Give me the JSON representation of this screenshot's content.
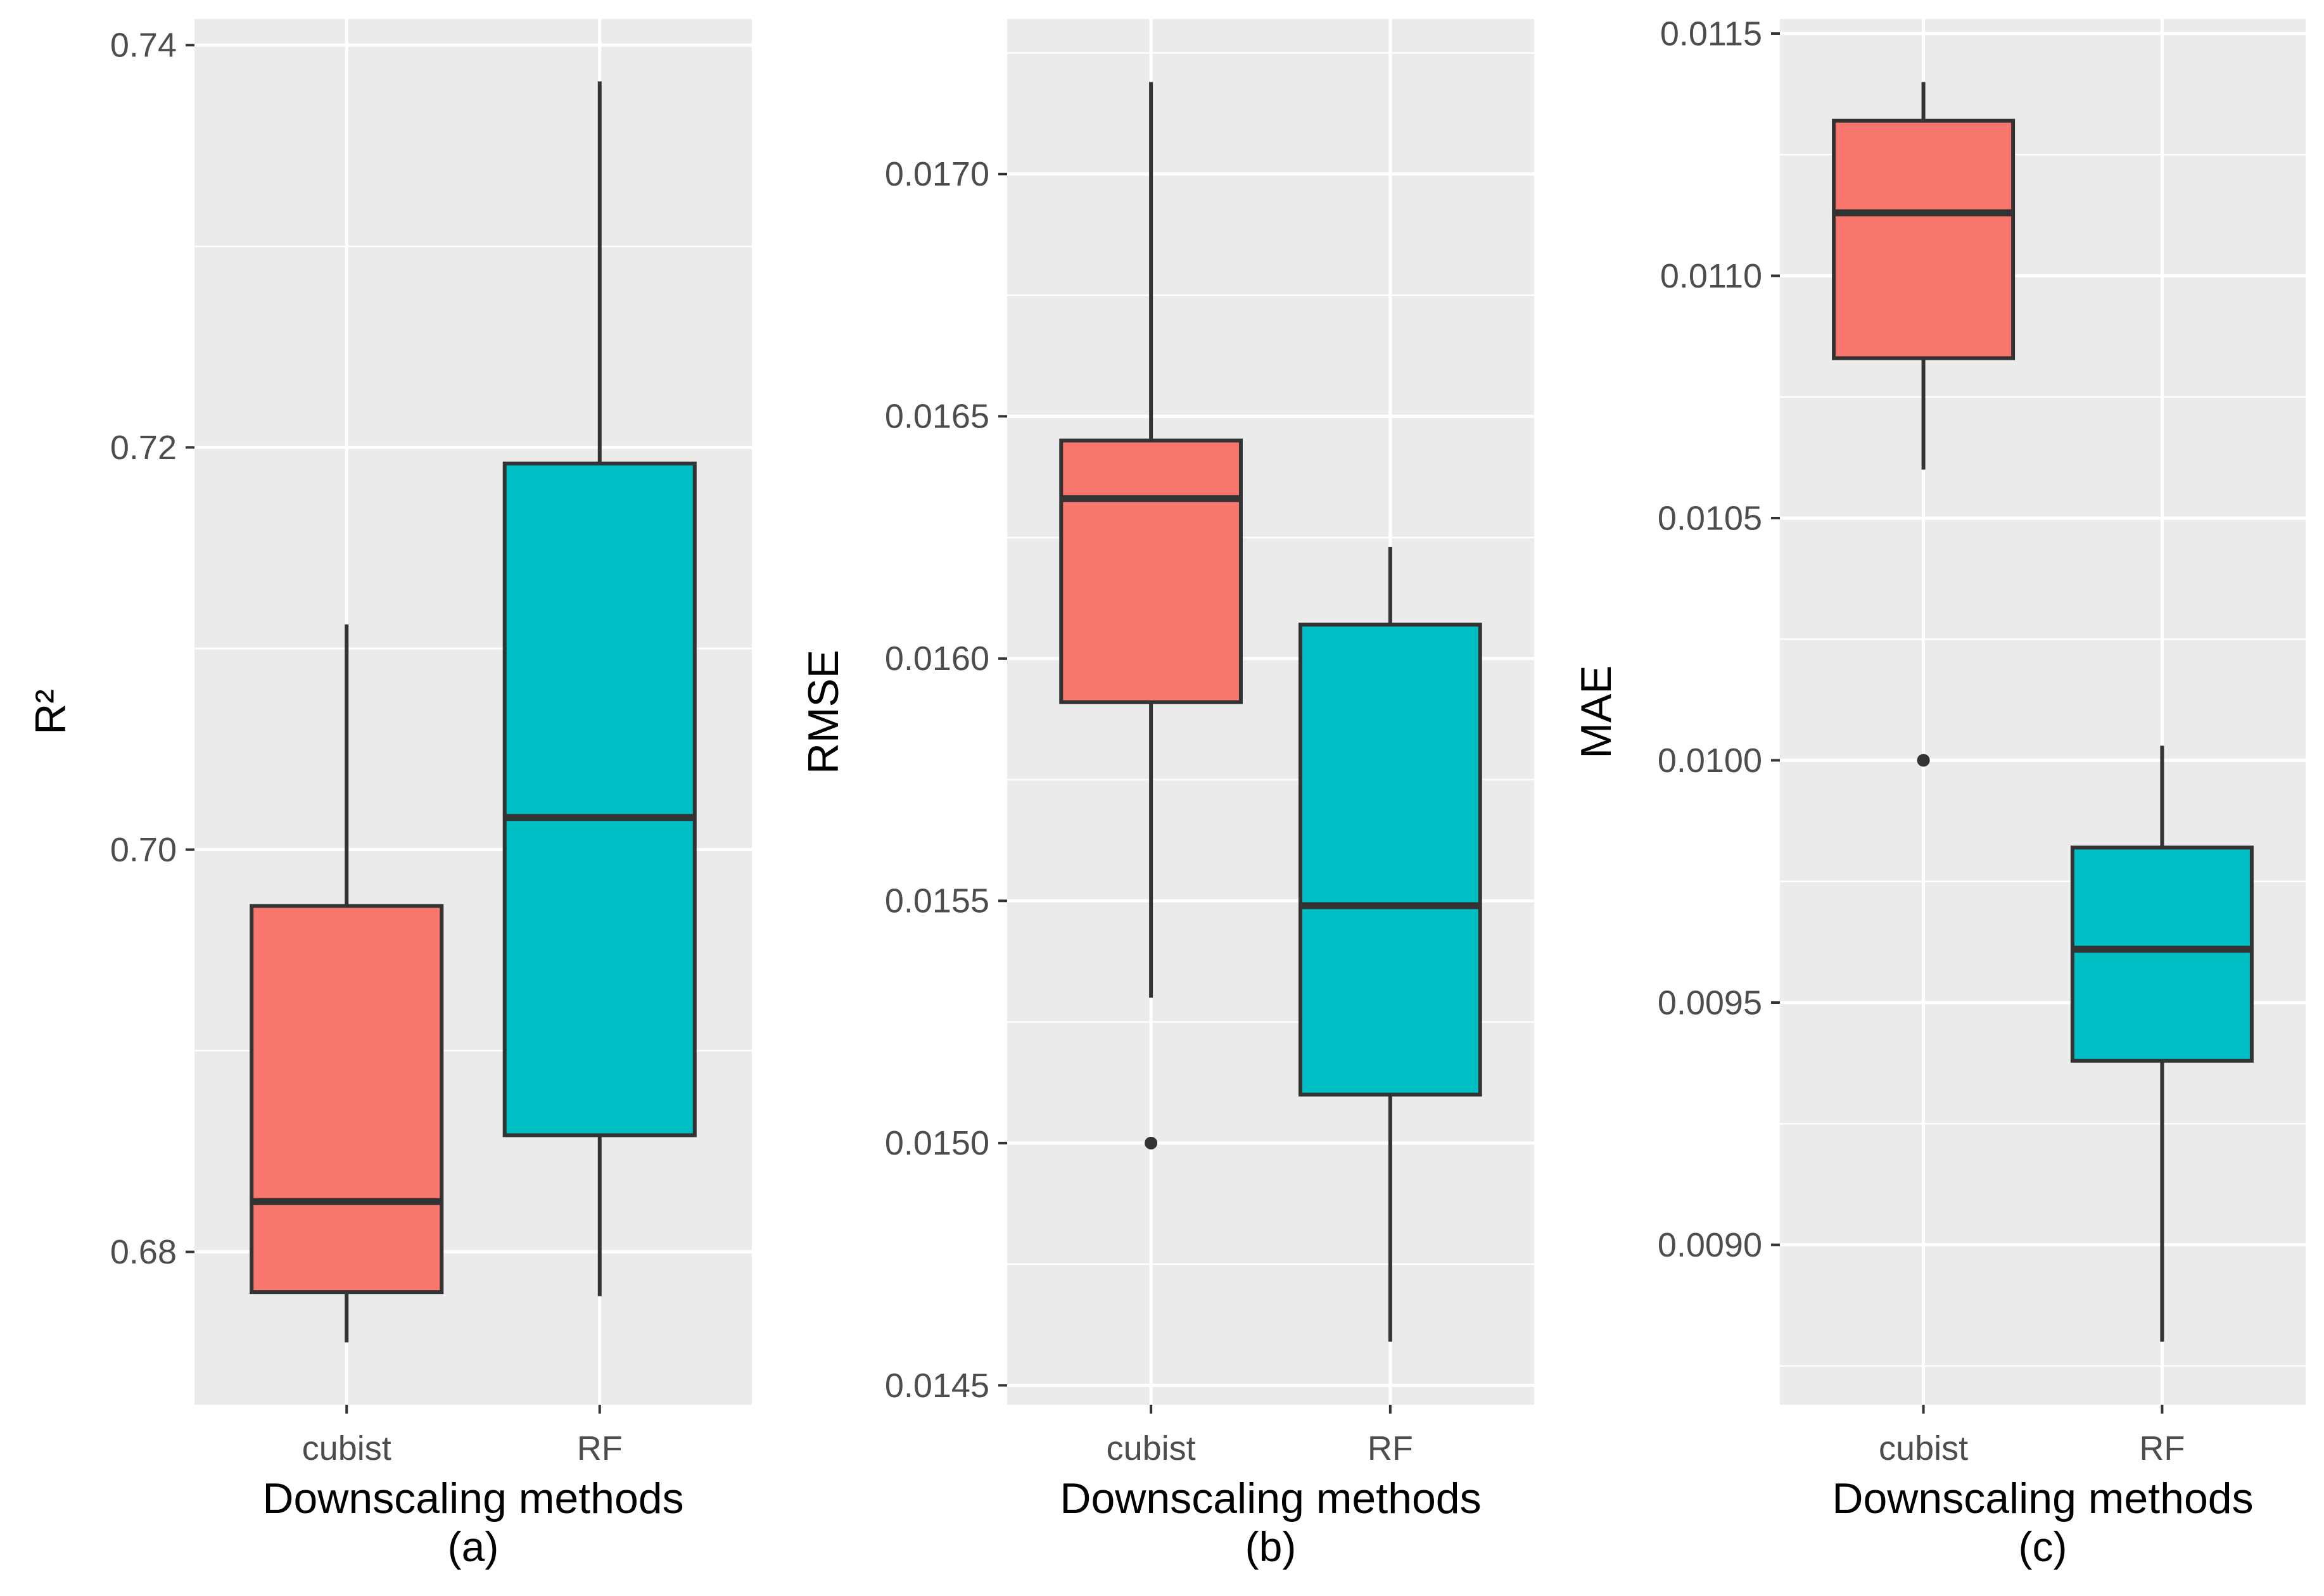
{
  "figure": {
    "background": "#FFFFFF",
    "panel_background": "#EBEBEB",
    "grid_color": "#FFFFFF",
    "box_outline_color": "#333333",
    "median_color": "#333333",
    "outlier_color": "#333333",
    "tick_mark_color": "#333333",
    "tick_text_color": "#4D4D4D",
    "axis_title_color": "#000000",
    "fill_colors": {
      "cubist": "#F8766D",
      "RF": "#00BFC4"
    }
  },
  "chart_data": [
    {
      "type": "boxplot",
      "caption": "(a)",
      "ylabel": "R²",
      "xlabel": "Downscaling methods",
      "categories": [
        "cubist",
        "RF"
      ],
      "ylim": [
        0.6724,
        0.7413
      ],
      "yticks": [
        0.68,
        0.7,
        0.72,
        0.74
      ],
      "ytick_labels": [
        "0.68",
        "0.70",
        "0.72",
        "0.74"
      ],
      "minor_ticks": [
        0.69,
        0.71,
        0.73
      ],
      "grid": true,
      "legend": "none",
      "series": [
        {
          "category": "cubist",
          "fill": "#F8766D",
          "whisker_low": 0.6755,
          "q1": 0.678,
          "median": 0.6825,
          "q3": 0.6972,
          "whisker_high": 0.7112,
          "outliers": []
        },
        {
          "category": "RF",
          "fill": "#00BFC4",
          "whisker_low": 0.6778,
          "q1": 0.6858,
          "median": 0.7016,
          "q3": 0.7192,
          "whisker_high": 0.7382,
          "outliers": []
        }
      ]
    },
    {
      "type": "boxplot",
      "caption": "(b)",
      "ylabel": "RMSE",
      "xlabel": "Downscaling methods",
      "categories": [
        "cubist",
        "RF"
      ],
      "ylim": [
        0.01446,
        0.01732
      ],
      "yticks": [
        0.0145,
        0.015,
        0.0155,
        0.016,
        0.0165,
        0.017
      ],
      "ytick_labels": [
        "0.0145",
        "0.0150",
        "0.0155",
        "0.0160",
        "0.0165",
        "0.0170"
      ],
      "minor_ticks": [
        0.01475,
        0.01525,
        0.01575,
        0.01625,
        0.01675,
        0.01725
      ],
      "grid": true,
      "legend": "none",
      "series": [
        {
          "category": "cubist",
          "fill": "#F8766D",
          "whisker_low": 0.0153,
          "q1": 0.01591,
          "median": 0.01633,
          "q3": 0.01645,
          "whisker_high": 0.01719,
          "outliers": [
            0.015
          ]
        },
        {
          "category": "RF",
          "fill": "#00BFC4",
          "whisker_low": 0.01459,
          "q1": 0.0151,
          "median": 0.01549,
          "q3": 0.01607,
          "whisker_high": 0.01623,
          "outliers": []
        }
      ]
    },
    {
      "type": "boxplot",
      "caption": "(c)",
      "ylabel": "MAE",
      "xlabel": "Downscaling methods",
      "categories": [
        "cubist",
        "RF"
      ],
      "ylim": [
        0.00867,
        0.01153
      ],
      "yticks": [
        0.009,
        0.0095,
        0.01,
        0.0105,
        0.011,
        0.0115
      ],
      "ytick_labels": [
        "0.0090",
        "0.0095",
        "0.0100",
        "0.0105",
        "0.0110",
        "0.0115"
      ],
      "minor_ticks": [
        0.00875,
        0.00925,
        0.00975,
        0.01025,
        0.01075,
        0.01125
      ],
      "grid": true,
      "legend": "none",
      "series": [
        {
          "category": "cubist",
          "fill": "#F8766D",
          "whisker_low": 0.0106,
          "q1": 0.01083,
          "median": 0.01113,
          "q3": 0.01132,
          "whisker_high": 0.0114,
          "outliers": [
            0.01
          ]
        },
        {
          "category": "RF",
          "fill": "#00BFC4",
          "whisker_low": 0.0088,
          "q1": 0.00938,
          "median": 0.00961,
          "q3": 0.00982,
          "whisker_high": 0.01003,
          "outliers": []
        }
      ]
    }
  ]
}
